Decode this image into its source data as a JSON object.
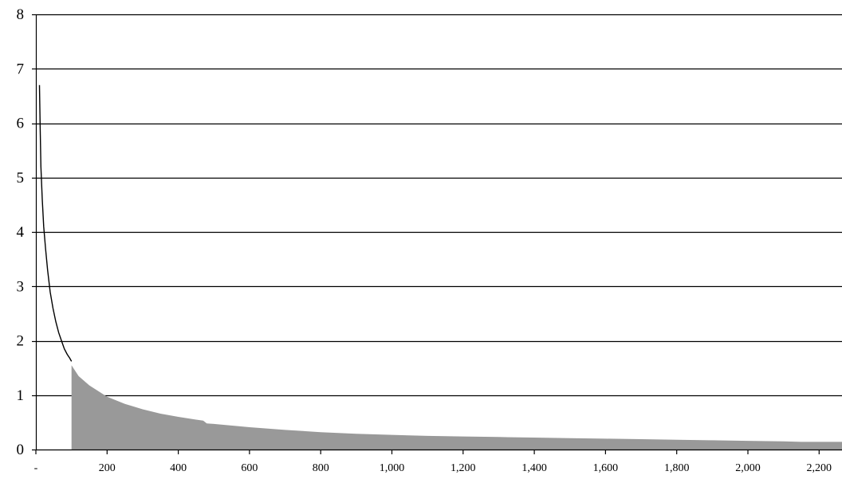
{
  "chart_data": {
    "type": "area",
    "title": "",
    "xlabel": "",
    "ylabel": "",
    "xlim": [
      -10,
      2300
    ],
    "ylim": [
      0,
      8
    ],
    "grid": "horizontal",
    "x_ticks": [
      0,
      200,
      400,
      600,
      800,
      1000,
      1200,
      1400,
      1600,
      1800,
      2000,
      2200
    ],
    "x_tick_labels": [
      "-",
      "200",
      "400",
      "600",
      "800",
      "1,000",
      "1,200",
      "1,400",
      "1,600",
      "1,800",
      "2,000",
      "2,200"
    ],
    "y_ticks": [
      0,
      1,
      2,
      3,
      4,
      5,
      6,
      7,
      8
    ],
    "y_tick_labels": [
      "0",
      "1",
      "2",
      "3",
      "4",
      "5",
      "6",
      "7",
      "8"
    ],
    "colors": {
      "fill": "#999999",
      "line": "#000000",
      "grid": "#000000"
    },
    "series": [
      {
        "style": "line",
        "x": [
          10,
          12,
          14,
          18,
          22,
          27,
          33,
          40,
          48,
          56,
          64,
          72,
          80,
          88,
          95,
          100
        ],
        "y": [
          6.7,
          5.9,
          5.2,
          4.6,
          4.1,
          3.7,
          3.3,
          2.9,
          2.6,
          2.35,
          2.15,
          2.0,
          1.85,
          1.75,
          1.68,
          1.62
        ]
      },
      {
        "style": "area",
        "x": [
          100,
          120,
          150,
          200,
          250,
          300,
          350,
          400,
          450,
          470,
          480,
          500,
          600,
          700,
          800,
          900,
          1000,
          1100,
          1200,
          1300,
          1400,
          1500,
          1600,
          1700,
          1800,
          1900,
          2000,
          2100,
          2150,
          2200,
          2300
        ],
        "y": [
          1.55,
          1.35,
          1.18,
          0.97,
          0.84,
          0.74,
          0.66,
          0.6,
          0.55,
          0.53,
          0.48,
          0.47,
          0.41,
          0.36,
          0.32,
          0.29,
          0.27,
          0.25,
          0.24,
          0.23,
          0.22,
          0.21,
          0.2,
          0.19,
          0.18,
          0.17,
          0.16,
          0.15,
          0.14,
          0.14,
          0.14
        ]
      }
    ]
  }
}
